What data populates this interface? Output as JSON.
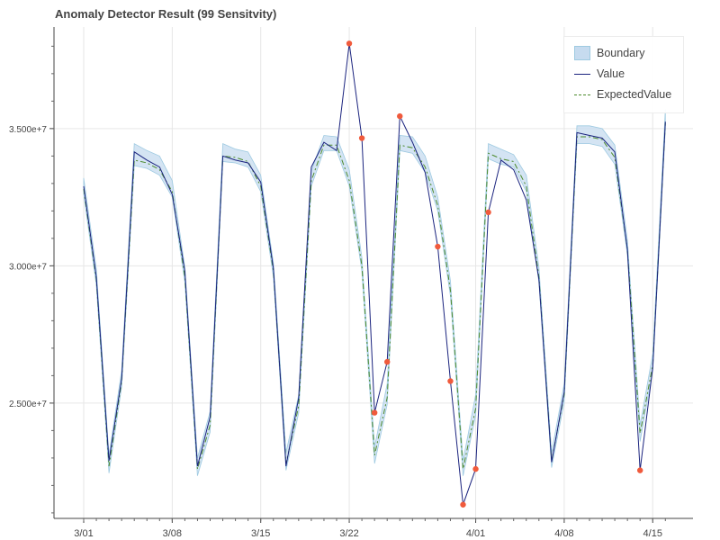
{
  "chart_data": {
    "type": "line",
    "title": "Anomaly Detector Result (99 Sensitvity)",
    "xlabel": "",
    "ylabel": "",
    "x_tick_labels": [
      "3/01",
      "3/08",
      "3/15",
      "3/22",
      "4/01",
      "4/08",
      "4/15"
    ],
    "y_tick_labels": [
      "2.500e+7",
      "3.000e+7",
      "3.500e+7"
    ],
    "ylim": [
      20800000,
      38700000
    ],
    "grid": true,
    "legend_position": "top-right",
    "colors": {
      "boundary_fill": "#c6dbef",
      "boundary_edge": "#9ecae1",
      "value_line": "#1a237e",
      "expected_line": "#4c8a2c",
      "anomaly_marker": "#f05a3c"
    },
    "x": [
      "3/01",
      "3/02",
      "3/03",
      "3/04",
      "3/05",
      "3/06",
      "3/07",
      "3/08",
      "3/09",
      "3/10",
      "3/11",
      "3/12",
      "3/13",
      "3/14",
      "3/15",
      "3/16",
      "3/17",
      "3/18",
      "3/19",
      "3/20",
      "3/21",
      "3/22",
      "3/23",
      "3/24",
      "3/25",
      "3/26",
      "3/27",
      "3/28",
      "3/29",
      "3/30",
      "3/31",
      "4/01",
      "4/02",
      "4/03",
      "4/04",
      "4/05",
      "4/06",
      "4/07",
      "4/08",
      "4/09",
      "4/10",
      "4/11",
      "4/12",
      "4/13",
      "4/14",
      "4/15",
      "4/16"
    ],
    "series": [
      {
        "name": "Value",
        "values": [
          32900000,
          29600000,
          22900000,
          25900000,
          34150000,
          33850000,
          33600000,
          32600000,
          29800000,
          22700000,
          24500000,
          34000000,
          33850000,
          33750000,
          33050000,
          29900000,
          22700000,
          25200000,
          33600000,
          34500000,
          34200000,
          38100000,
          34650000,
          24650000,
          26500000,
          35450000,
          34500000,
          33400000,
          30700000,
          25800000,
          21300000,
          22600000,
          31950000,
          33850000,
          33500000,
          32400000,
          29500000,
          22850000,
          25400000,
          34850000,
          34750000,
          34650000,
          34150000,
          30600000,
          22550000,
          26300000,
          35250000
        ]
      },
      {
        "name": "ExpectedValue",
        "values": [
          32800000,
          29500000,
          22700000,
          25800000,
          33850000,
          33750000,
          33500000,
          32700000,
          29600000,
          22600000,
          24200000,
          34000000,
          33950000,
          33800000,
          32900000,
          29800000,
          22800000,
          24900000,
          33100000,
          34400000,
          34400000,
          33100000,
          30000000,
          23100000,
          25200000,
          34400000,
          34300000,
          33600000,
          32200000,
          29100000,
          22600000,
          24800000,
          34100000,
          33900000,
          33800000,
          32900000,
          29600000,
          22900000,
          25300000,
          34700000,
          34700000,
          34600000,
          33950000,
          30600000,
          23900000,
          26400000,
          35200000
        ]
      },
      {
        "name": "Boundary",
        "lower": [
          32600000,
          29300000,
          22450000,
          25600000,
          33650000,
          33550000,
          33300000,
          32500000,
          29400000,
          22350000,
          23950000,
          33800000,
          33750000,
          33600000,
          32700000,
          29600000,
          22550000,
          24650000,
          32900000,
          34200000,
          34200000,
          32900000,
          29800000,
          22800000,
          24950000,
          34200000,
          34100000,
          33400000,
          32000000,
          28900000,
          22350000,
          24550000,
          33900000,
          33700000,
          33600000,
          32700000,
          29400000,
          22650000,
          25050000,
          34450000,
          34450000,
          34350000,
          33700000,
          30400000,
          23600000,
          26200000,
          35000000
        ],
        "upper": [
          33200000,
          29900000,
          23100000,
          26200000,
          34450000,
          34200000,
          34000000,
          33100000,
          29950000,
          23000000,
          24700000,
          34450000,
          34250000,
          34150000,
          33300000,
          30100000,
          23200000,
          25300000,
          33450000,
          34750000,
          34700000,
          33500000,
          30300000,
          23400000,
          25700000,
          34750000,
          34700000,
          34000000,
          32500000,
          29450000,
          22900000,
          25300000,
          34450000,
          34250000,
          34050000,
          33300000,
          29950000,
          23200000,
          25700000,
          35100000,
          35100000,
          35000000,
          34400000,
          30950000,
          24200000,
          26800000,
          35700000
        ]
      }
    ],
    "anomalies": [
      {
        "x": "3/22",
        "y": 38100000
      },
      {
        "x": "3/23",
        "y": 34650000
      },
      {
        "x": "3/24",
        "y": 24650000
      },
      {
        "x": "3/25",
        "y": 26500000
      },
      {
        "x": "3/26",
        "y": 35450000
      },
      {
        "x": "3/29",
        "y": 30700000
      },
      {
        "x": "3/30",
        "y": 25800000
      },
      {
        "x": "3/31",
        "y": 21300000
      },
      {
        "x": "4/01",
        "y": 22600000
      },
      {
        "x": "4/02",
        "y": 31950000
      },
      {
        "x": "4/14",
        "y": 22550000
      }
    ],
    "legend": [
      "Boundary",
      "Value",
      "ExpectedValue"
    ]
  }
}
